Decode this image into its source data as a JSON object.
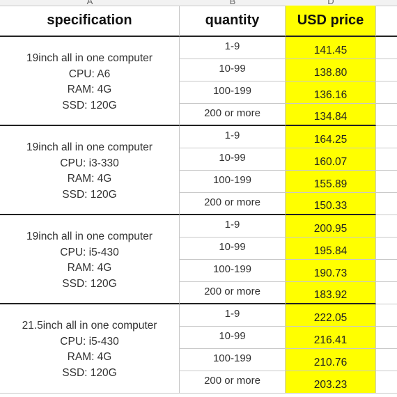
{
  "column_letters": [
    "A",
    "B",
    "D"
  ],
  "headers": {
    "specification": "specification",
    "quantity": "quantity",
    "price": "USD price"
  },
  "groups": [
    {
      "spec": [
        "19inch all in one computer",
        "CPU:  A6",
        "RAM:  4G",
        "SSD:  120G"
      ],
      "rows": [
        {
          "qty": "1-9",
          "price": "141.45"
        },
        {
          "qty": "10-99",
          "price": "138.80"
        },
        {
          "qty": "100-199",
          "price": "136.16"
        },
        {
          "qty": "200 or more",
          "price": "134.84"
        }
      ]
    },
    {
      "spec": [
        "19inch all in one computer",
        "CPU:  i3-330",
        "RAM:  4G",
        "SSD:  120G"
      ],
      "rows": [
        {
          "qty": "1-9",
          "price": "164.25"
        },
        {
          "qty": "10-99",
          "price": "160.07"
        },
        {
          "qty": "100-199",
          "price": "155.89"
        },
        {
          "qty": "200 or more",
          "price": "150.33"
        }
      ]
    },
    {
      "spec": [
        "19inch all in one computer",
        "CPU:  i5-430",
        "RAM:  4G",
        "SSD:  120G"
      ],
      "rows": [
        {
          "qty": "1-9",
          "price": "200.95"
        },
        {
          "qty": "10-99",
          "price": "195.84"
        },
        {
          "qty": "100-199",
          "price": "190.73"
        },
        {
          "qty": "200 or more",
          "price": "183.92"
        }
      ]
    },
    {
      "spec": [
        "21.5inch all in one computer",
        "CPU:  i5-430",
        "RAM:  4G",
        "SSD:  120G"
      ],
      "rows": [
        {
          "qty": "1-9",
          "price": "222.05"
        },
        {
          "qty": "10-99",
          "price": "216.41"
        },
        {
          "qty": "100-199",
          "price": "210.76"
        },
        {
          "qty": "200 or more",
          "price": "203.23"
        }
      ]
    }
  ]
}
